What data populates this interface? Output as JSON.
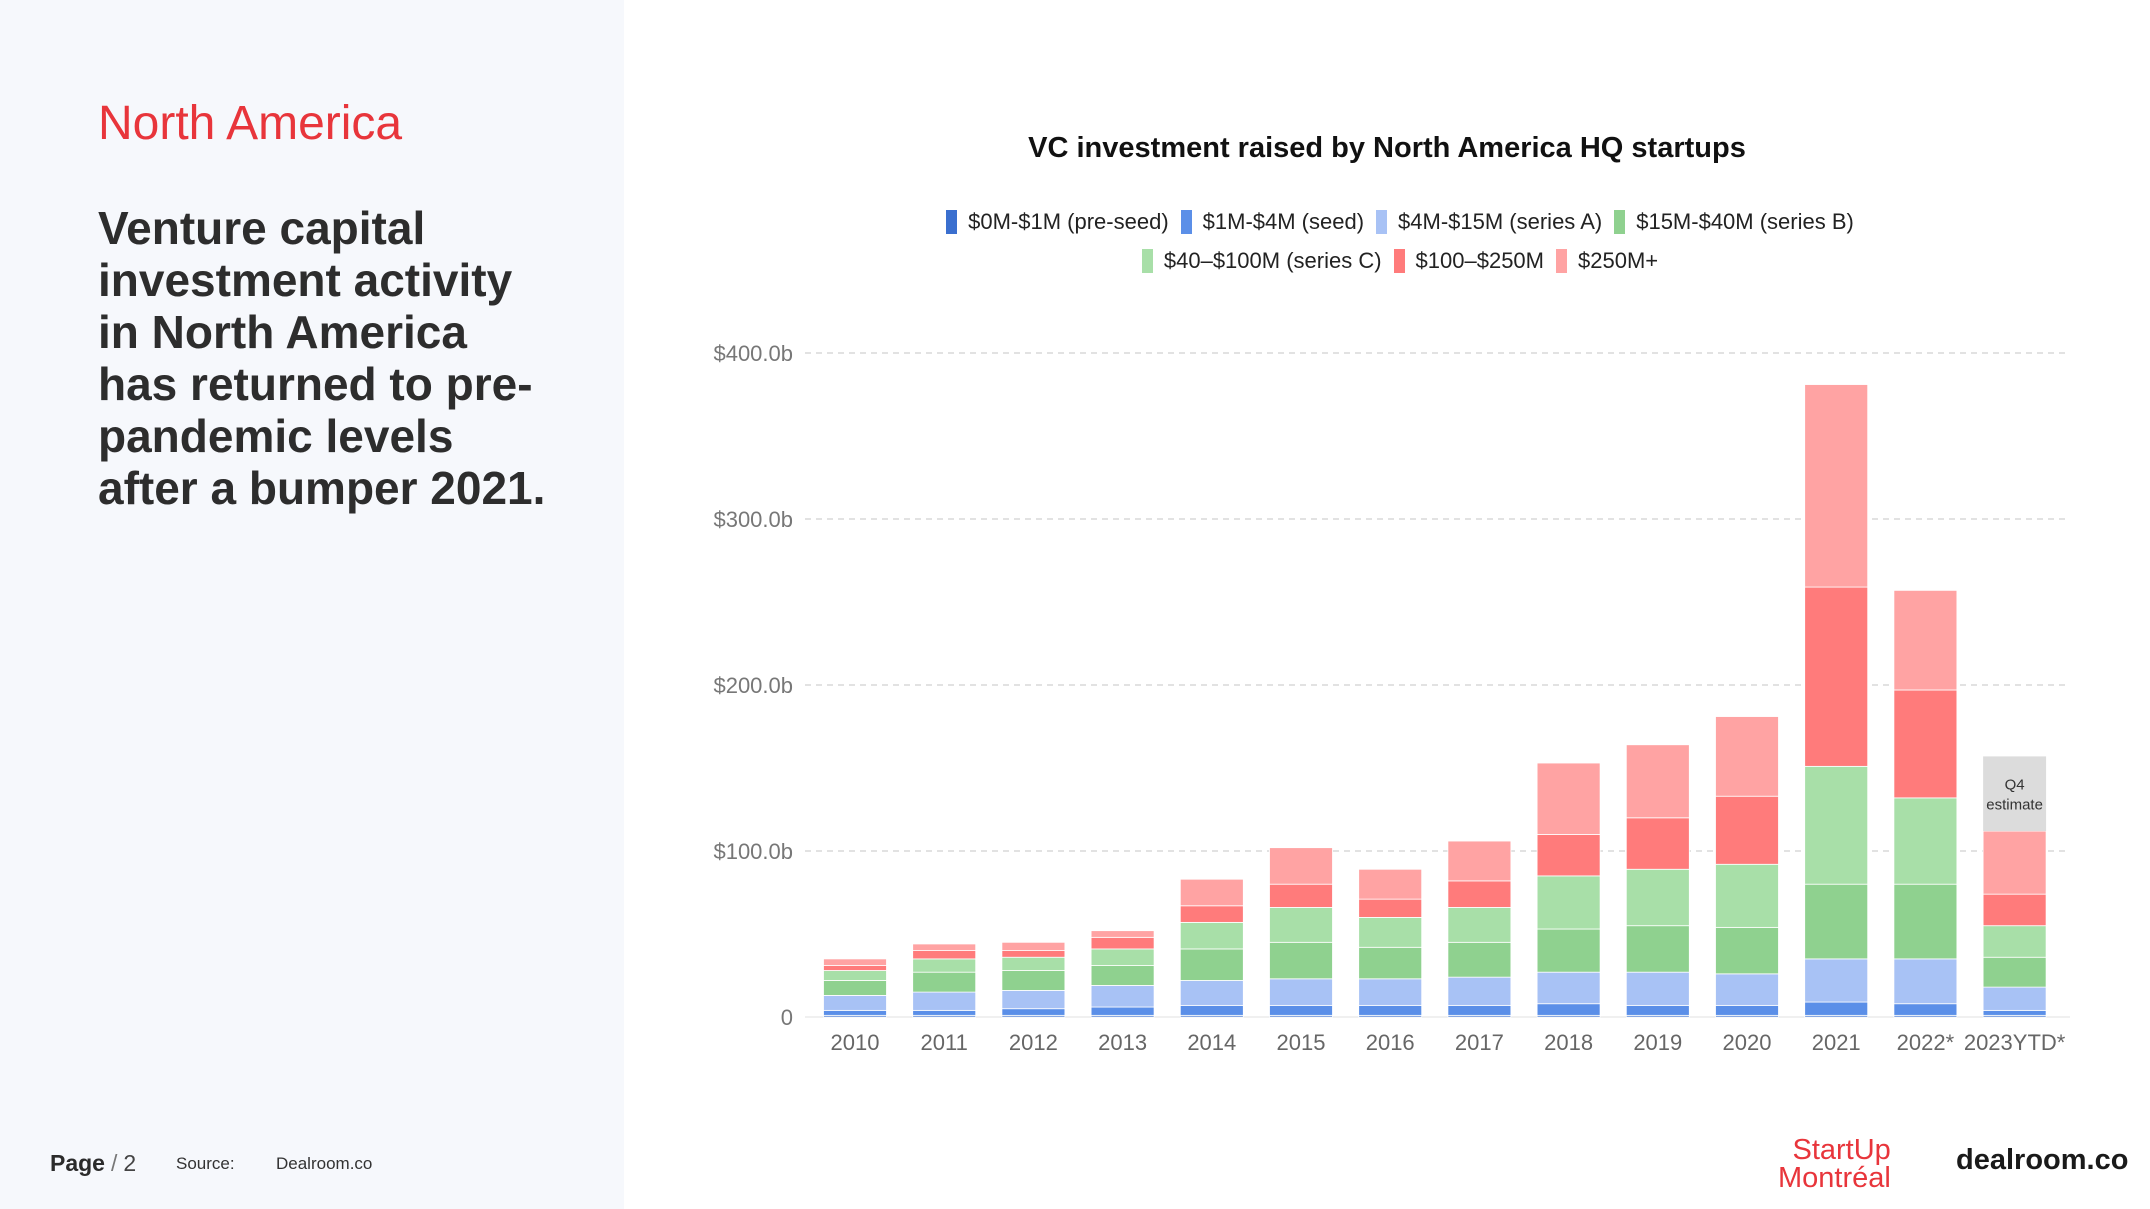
{
  "left": {
    "region": "North America",
    "headline": "Venture capital investment activity in North America has returned to pre-pandemic levels after a bumper 2021."
  },
  "footer": {
    "page_label": "Page",
    "page_sep": "/",
    "page_number": "2",
    "source_label": "Source:",
    "source_value": "Dealroom.co"
  },
  "logos": {
    "startup_line1": "StartUp",
    "startup_line2": "Montréal",
    "dealroom": "dealroom.co"
  },
  "chart_data": {
    "type": "bar",
    "stacked": true,
    "title": "VC investment raised by North America HQ startups",
    "xlabel": "",
    "ylabel": "",
    "ylim": [
      0,
      400
    ],
    "yticks": [
      0,
      100,
      200,
      300,
      400
    ],
    "ytick_labels": [
      "0",
      "$100.0b",
      "$200.0b",
      "$300.0b",
      "$400.0b"
    ],
    "grid": true,
    "legend_position": "top",
    "categories": [
      "2010",
      "2011",
      "2012",
      "2013",
      "2014",
      "2015",
      "2016",
      "2017",
      "2018",
      "2019",
      "2020",
      "2021",
      "2022*",
      "2023YTD*"
    ],
    "series": [
      {
        "name": "$0M-$1M  (pre-seed)",
        "color": "#3a6fcf",
        "values": [
          1,
          1,
          1,
          1,
          1,
          1,
          1,
          1,
          1,
          1,
          1,
          1,
          1,
          1
        ]
      },
      {
        "name": "$1M-$4M (seed)",
        "color": "#5b8fe8",
        "values": [
          3,
          3,
          4,
          5,
          6,
          6,
          6,
          6,
          7,
          6,
          6,
          8,
          7,
          3
        ]
      },
      {
        "name": "$4M-$15M (series A)",
        "color": "#a8c2f5",
        "values": [
          9,
          11,
          11,
          13,
          15,
          16,
          16,
          17,
          19,
          20,
          19,
          26,
          27,
          14
        ]
      },
      {
        "name": "$15M-$40M (series B)",
        "color": "#8fd18f",
        "values": [
          9,
          12,
          12,
          12,
          19,
          22,
          19,
          21,
          26,
          28,
          28,
          45,
          45,
          18
        ]
      },
      {
        "name": "$40–$100M (series C)",
        "color": "#a8dfa8",
        "values": [
          6,
          8,
          8,
          10,
          16,
          21,
          18,
          21,
          32,
          34,
          38,
          71,
          52,
          19
        ]
      },
      {
        "name": "$100–$250M",
        "color": "#ff7b7b",
        "values": [
          3,
          5,
          4,
          7,
          10,
          14,
          11,
          16,
          25,
          31,
          41,
          108,
          65,
          19
        ]
      },
      {
        "name": "$250M+",
        "color": "#ffa3a3",
        "values": [
          4,
          4,
          5,
          4,
          16,
          22,
          18,
          24,
          43,
          44,
          48,
          122,
          60,
          38
        ]
      }
    ],
    "estimate": {
      "category": "2023YTD*",
      "value": 45,
      "label_line1": "Q4",
      "label_line2": "estimate",
      "color": "#dcdcdc"
    }
  }
}
